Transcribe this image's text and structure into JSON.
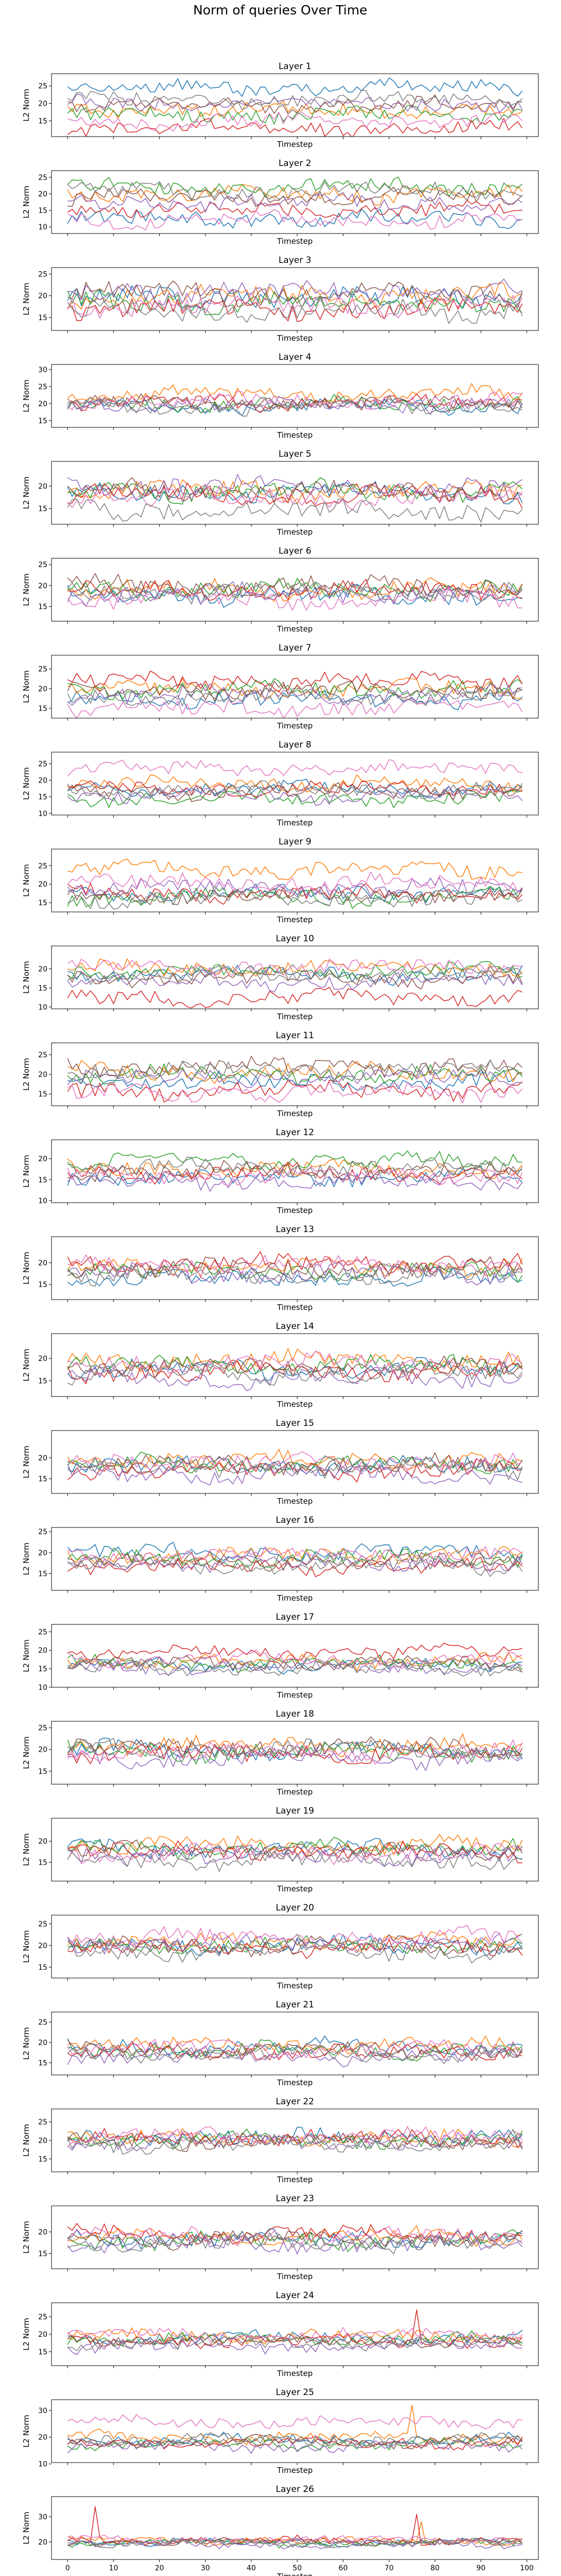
{
  "figure": {
    "title": "Norm of queries Over Time"
  },
  "colors": [
    "#1f77b4",
    "#ff7f0e",
    "#2ca02c",
    "#d62728",
    "#9467bd",
    "#8c564b",
    "#e377c2",
    "#7f7f7f"
  ],
  "chart_data": {
    "type": "line",
    "x": {
      "min": 0,
      "max": 99,
      "step": 1
    },
    "xlabel": "Timestep",
    "ylabel": "L2 Norm",
    "xticks": [
      0,
      10,
      20,
      30,
      40,
      50,
      60,
      70,
      80,
      90,
      100
    ],
    "n_series": 8,
    "grid": false,
    "legend": "none",
    "layers": [
      {
        "title": "Layer 1",
        "ylim": [
          10.5,
          28.5
        ],
        "yticks": [
          15,
          20,
          25
        ],
        "means": [
          24.5,
          18.2,
          17.0,
          13.0,
          20.0,
          19.5,
          15.0,
          21.0
        ],
        "amp": 1.8,
        "spikes": []
      },
      {
        "title": "Layer 2",
        "ylim": [
          8.0,
          27.0
        ],
        "yticks": [
          10,
          15,
          20,
          25
        ],
        "means": [
          12.5,
          20.0,
          22.0,
          15.0,
          17.5,
          19.0,
          12.0,
          21.0
        ],
        "amp": 2.0,
        "spikes": []
      },
      {
        "title": "Layer 3",
        "ylim": [
          12.0,
          26.5
        ],
        "yticks": [
          15,
          20,
          25
        ],
        "means": [
          19.5,
          20.0,
          18.5,
          17.0,
          21.0,
          20.5,
          18.0,
          16.5
        ],
        "amp": 2.0,
        "spikes": []
      },
      {
        "title": "Layer 4",
        "ylim": [
          13.0,
          31.5
        ],
        "yticks": [
          15,
          20,
          25,
          30
        ],
        "means": [
          19.0,
          23.0,
          20.0,
          20.0,
          19.5,
          20.5,
          21.0,
          19.0
        ],
        "amp": 1.8,
        "spikes": []
      },
      {
        "title": "Layer 5",
        "ylim": [
          11.5,
          25.5
        ],
        "yticks": [
          15,
          20
        ],
        "means": [
          18.5,
          19.0,
          19.0,
          18.0,
          20.0,
          19.0,
          17.5,
          14.5
        ],
        "amp": 1.8,
        "spikes": []
      },
      {
        "title": "Layer 6",
        "ylim": [
          11.5,
          26.5
        ],
        "yticks": [
          15,
          20,
          25
        ],
        "means": [
          17.5,
          19.0,
          19.0,
          19.0,
          18.0,
          20.0,
          16.5,
          18.5
        ],
        "amp": 1.8,
        "spikes": []
      },
      {
        "title": "Layer 7",
        "ylim": [
          12.5,
          28.5
        ],
        "yticks": [
          15,
          20,
          25
        ],
        "means": [
          17.5,
          20.0,
          20.0,
          22.0,
          18.5,
          19.5,
          15.0,
          18.0
        ],
        "amp": 1.8,
        "spikes": []
      },
      {
        "title": "Layer 8",
        "ylim": [
          9.5,
          28.5
        ],
        "yticks": [
          10,
          15,
          20,
          25
        ],
        "means": [
          17.5,
          19.0,
          14.5,
          17.5,
          15.5,
          16.5,
          23.5,
          17.0
        ],
        "amp": 1.8,
        "spikes": []
      },
      {
        "title": "Layer 9",
        "ylim": [
          12.5,
          29.5
        ],
        "yticks": [
          15,
          20,
          25
        ],
        "means": [
          17.5,
          24.0,
          16.5,
          17.5,
          19.0,
          17.0,
          20.5,
          16.0
        ],
        "amp": 1.8,
        "spikes": []
      },
      {
        "title": "Layer 10",
        "ylim": [
          9.5,
          26.0
        ],
        "yticks": [
          10,
          15,
          20
        ],
        "means": [
          18.5,
          20.0,
          19.5,
          12.5,
          16.5,
          17.5,
          20.5,
          18.5
        ],
        "amp": 1.7,
        "spikes": []
      },
      {
        "title": "Layer 11",
        "ylim": [
          12.0,
          28.0
        ],
        "yticks": [
          15,
          20,
          25
        ],
        "means": [
          18.0,
          20.5,
          20.0,
          16.0,
          19.0,
          22.0,
          15.5,
          21.0
        ],
        "amp": 1.8,
        "spikes": []
      },
      {
        "title": "Layer 12",
        "ylim": [
          9.5,
          24.5
        ],
        "yticks": [
          10,
          15,
          20
        ],
        "means": [
          15.5,
          17.5,
          19.5,
          16.5,
          14.5,
          17.0,
          16.0,
          18.0
        ],
        "amp": 1.6,
        "spikes": []
      },
      {
        "title": "Layer 13",
        "ylim": [
          11.5,
          26.0
        ],
        "yticks": [
          15,
          20
        ],
        "means": [
          16.5,
          19.0,
          18.0,
          20.0,
          17.5,
          18.5,
          19.5,
          17.0
        ],
        "amp": 1.7,
        "spikes": []
      },
      {
        "title": "Layer 14",
        "ylim": [
          11.5,
          25.5
        ],
        "yticks": [
          15,
          20
        ],
        "means": [
          17.5,
          19.5,
          18.5,
          17.0,
          15.5,
          18.0,
          19.0,
          16.5
        ],
        "amp": 1.7,
        "spikes": []
      },
      {
        "title": "Layer 15",
        "ylim": [
          11.5,
          26.5
        ],
        "yticks": [
          15,
          20
        ],
        "means": [
          18.0,
          19.5,
          18.5,
          17.0,
          16.0,
          18.5,
          19.0,
          17.5
        ],
        "amp": 1.7,
        "spikes": []
      },
      {
        "title": "Layer 16",
        "ylim": [
          11.0,
          26.0
        ],
        "yticks": [
          15,
          20,
          25
        ],
        "means": [
          20.0,
          19.5,
          18.5,
          16.5,
          17.5,
          18.0,
          19.5,
          17.0
        ],
        "amp": 1.6,
        "spikes": []
      },
      {
        "title": "Layer 17",
        "ylim": [
          10.0,
          27.0
        ],
        "yticks": [
          10,
          15,
          20,
          25
        ],
        "means": [
          16.0,
          17.0,
          16.5,
          19.5,
          15.5,
          16.5,
          17.5,
          15.0
        ],
        "amp": 1.5,
        "spikes": []
      },
      {
        "title": "Layer 18",
        "ylim": [
          12.0,
          26.5
        ],
        "yticks": [
          15,
          20,
          25
        ],
        "means": [
          20.0,
          21.0,
          19.5,
          19.0,
          18.0,
          20.5,
          19.5,
          20.0
        ],
        "amp": 1.7,
        "spikes": []
      },
      {
        "title": "Layer 19",
        "ylim": [
          10.5,
          25.5
        ],
        "yticks": [
          15,
          20
        ],
        "means": [
          18.0,
          19.0,
          18.5,
          17.5,
          16.5,
          18.0,
          17.0,
          15.5
        ],
        "amp": 1.7,
        "spikes": []
      },
      {
        "title": "Layer 20",
        "ylim": [
          12.5,
          27.0
        ],
        "yticks": [
          15,
          20,
          25
        ],
        "means": [
          20.0,
          21.0,
          20.0,
          19.5,
          20.5,
          20.0,
          22.0,
          18.5
        ],
        "amp": 1.6,
        "spikes": []
      },
      {
        "title": "Layer 21",
        "ylim": [
          12.0,
          27.5
        ],
        "yticks": [
          15,
          20,
          25
        ],
        "means": [
          19.0,
          19.5,
          18.0,
          17.5,
          16.5,
          18.0,
          18.5,
          17.0
        ],
        "amp": 1.6,
        "spikes": []
      },
      {
        "title": "Layer 22",
        "ylim": [
          11.5,
          28.5
        ],
        "yticks": [
          15,
          20,
          25
        ],
        "means": [
          21.0,
          20.5,
          20.0,
          20.5,
          19.5,
          20.0,
          21.0,
          19.0
        ],
        "amp": 1.8,
        "spikes": []
      },
      {
        "title": "Layer 23",
        "ylim": [
          11.5,
          26.0
        ],
        "yticks": [
          15,
          20
        ],
        "means": [
          18.5,
          19.0,
          18.0,
          19.5,
          17.0,
          18.5,
          19.0,
          17.5
        ],
        "amp": 1.6,
        "spikes": []
      },
      {
        "title": "Layer 24",
        "ylim": [
          11.0,
          29.0
        ],
        "yticks": [
          15,
          20,
          25
        ],
        "means": [
          19.0,
          19.5,
          18.5,
          18.0,
          16.5,
          18.0,
          20.0,
          17.5
        ],
        "amp": 1.5,
        "spikes": [
          [
            3,
            76,
            27.0
          ]
        ]
      },
      {
        "title": "Layer 25",
        "ylim": [
          10.5,
          34.0
        ],
        "yticks": [
          10,
          20,
          30
        ],
        "means": [
          19.0,
          20.0,
          17.5,
          18.0,
          16.5,
          18.5,
          25.5,
          19.0
        ],
        "amp": 1.8,
        "spikes": [
          [
            1,
            75,
            32.0
          ]
        ]
      },
      {
        "title": "Layer 26",
        "ylim": [
          13.0,
          38.0
        ],
        "yticks": [
          20,
          30
        ],
        "means": [
          20.0,
          20.5,
          19.5,
          20.5,
          19.0,
          20.0,
          21.0,
          19.5
        ],
        "amp": 1.3,
        "spikes": [
          [
            3,
            6,
            34.0
          ],
          [
            3,
            76,
            31.0
          ],
          [
            1,
            77,
            28.0
          ]
        ]
      }
    ]
  }
}
